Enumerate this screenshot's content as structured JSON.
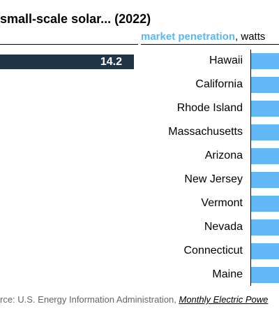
{
  "header": {
    "title": "small-scale solar... (2022)",
    "subtitle_accent": "market penetration",
    "subtitle_rest": ", watts"
  },
  "left_panel": {
    "value_label": "14.2",
    "bar_color": "#203648"
  },
  "footer": {
    "source_prefix": "rce: U.S. Energy Information Administration, ",
    "source_link": "Monthly Electric Powe"
  },
  "colors": {
    "accent": "#5bb7f0",
    "bar_right": "#63b9f6"
  },
  "chart_data": {
    "type": "bar",
    "title": "small-scale solar... (2022)",
    "categories": [
      "Hawaii",
      "California",
      "Rhode Island",
      "Massachusetts",
      "Arizona",
      "New Jersey",
      "Vermont",
      "Nevada",
      "Connecticut",
      "Maine"
    ],
    "left_values": [
      14.2
    ]
  }
}
